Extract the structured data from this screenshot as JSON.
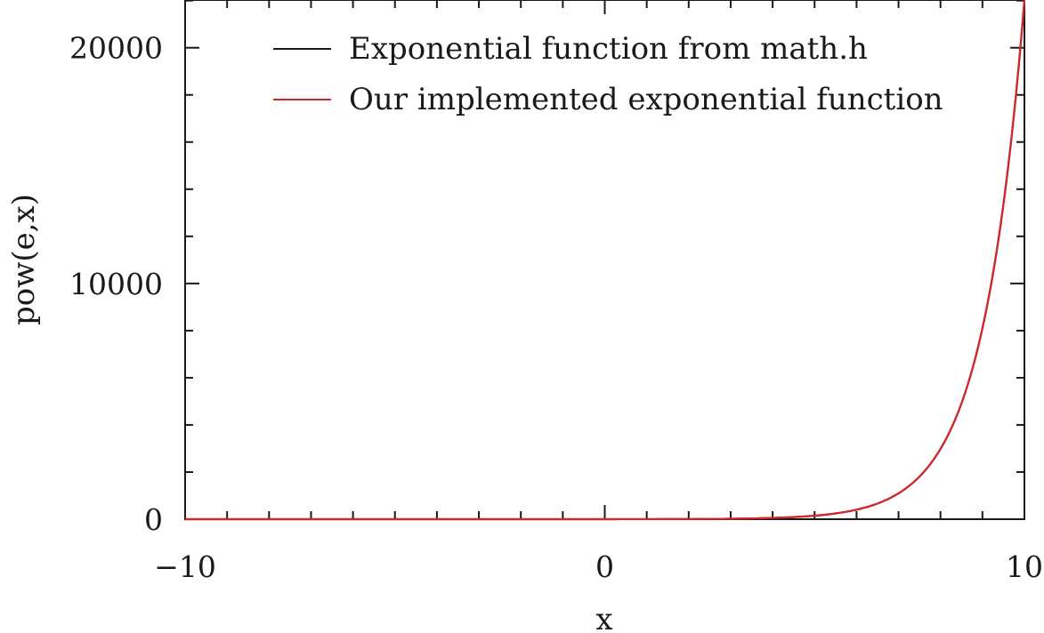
{
  "chart_data": {
    "type": "line",
    "title": "",
    "xlabel": "x",
    "ylabel": "pow(e,x)",
    "xlim": [
      -10,
      10
    ],
    "ylim": [
      0,
      22026
    ],
    "x_major_ticks": [
      -10,
      0,
      10
    ],
    "x_tick_labels": [
      "−10",
      "0",
      "10"
    ],
    "x_minor_step": 1,
    "y_major_ticks": [
      0,
      10000,
      20000
    ],
    "y_tick_labels": [
      "0",
      "10000",
      "20000"
    ],
    "y_minor_step": 2000,
    "grid": false,
    "legend_position": "top-right",
    "x": [
      -10,
      -9,
      -8,
      -7,
      -6,
      -5,
      -4,
      -3,
      -2,
      -1,
      0,
      1,
      2,
      3,
      4,
      5,
      6,
      7,
      7.5,
      8,
      8.5,
      9,
      9.25,
      9.5,
      9.75,
      10
    ],
    "series": [
      {
        "name": "Exponential function from math.h",
        "color": "#1a1a1a",
        "values": [
          0,
          0,
          0,
          0,
          0,
          0.01,
          0.02,
          0.05,
          0.14,
          0.37,
          1,
          2.7,
          7.4,
          20,
          55,
          148,
          403,
          1097,
          1808,
          2981,
          4915,
          8103,
          10405,
          13360,
          17154,
          22026
        ]
      },
      {
        "name": "Our implemented exponential function",
        "color": "#d7262d",
        "values": [
          0,
          0,
          0,
          0,
          0,
          0.01,
          0.02,
          0.05,
          0.14,
          0.37,
          1,
          2.7,
          7.4,
          20,
          55,
          148,
          403,
          1097,
          1808,
          2981,
          4915,
          8103,
          10405,
          13360,
          17154,
          22026
        ]
      }
    ]
  }
}
